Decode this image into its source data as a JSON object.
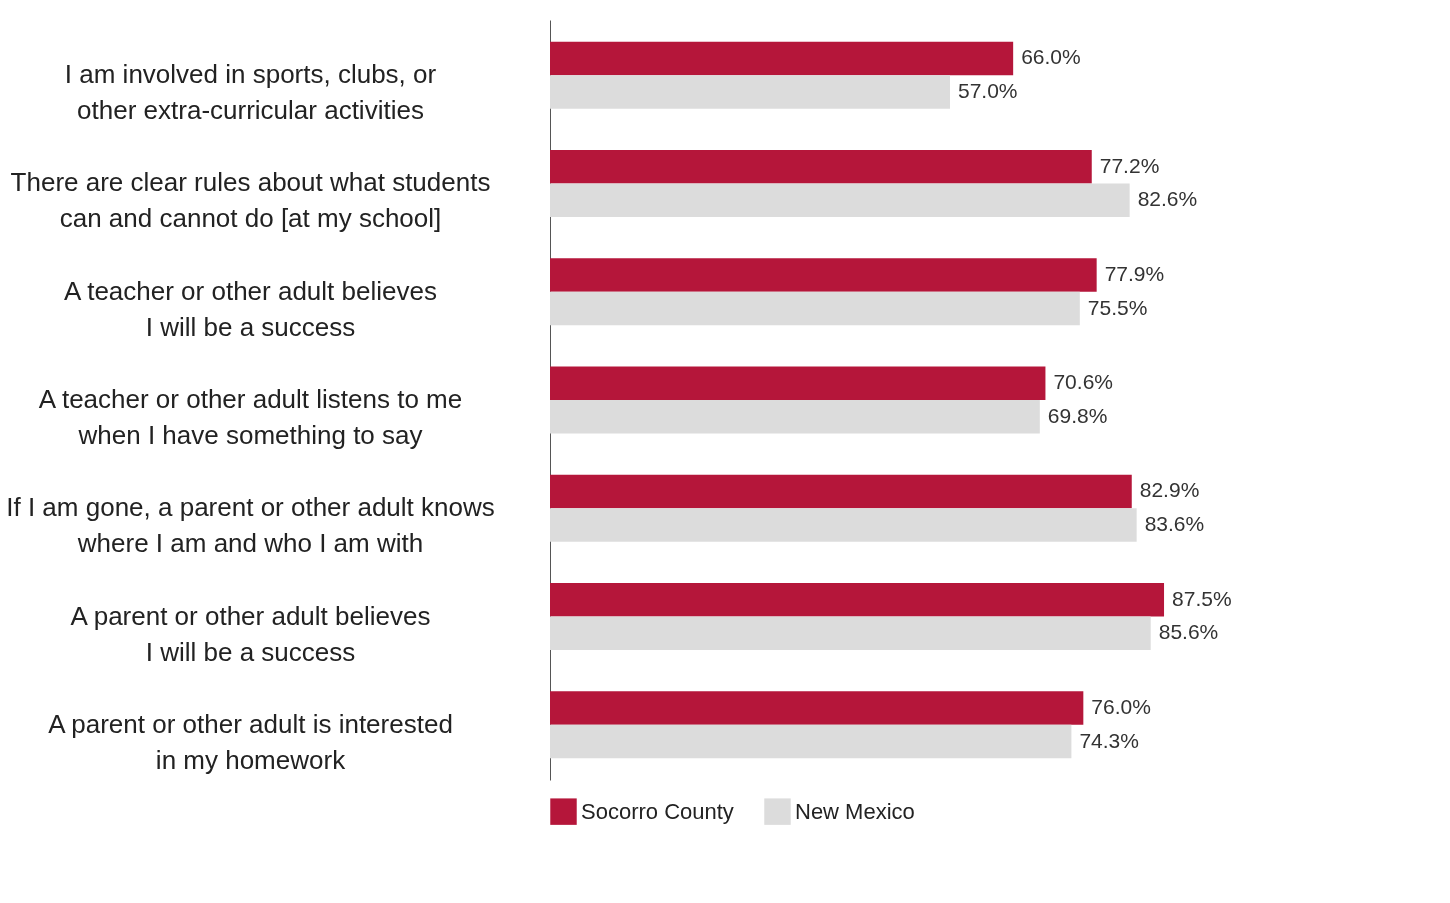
{
  "chart_data": {
    "type": "bar",
    "orientation": "horizontal",
    "categories": [
      "I am involved in sports, clubs, or\nother extra-curricular activities",
      "There are clear rules about what students\ncan and cannot do [at my school]",
      "A teacher or other adult believes\nI will be a success",
      "A teacher or other adult listens to me\nwhen I have something to say",
      "If I am gone, a parent or other adult knows\nwhere I am and who I am with",
      "A parent or other adult believes\nI will be a success",
      "A parent or other adult is interested\nin my homework"
    ],
    "series": [
      {
        "name": "Socorro County",
        "color": "#b5163a",
        "values": [
          66.0,
          77.2,
          77.9,
          70.6,
          82.9,
          87.5,
          76.0
        ],
        "value_labels": [
          "66.0%",
          "77.2%",
          "77.9%",
          "70.6%",
          "82.9%",
          "87.5%",
          "76.0%"
        ]
      },
      {
        "name": "New Mexico",
        "color": "#dcdcdc",
        "values": [
          57.0,
          82.6,
          75.5,
          69.8,
          83.6,
          85.6,
          74.3
        ],
        "value_labels": [
          "57.0%",
          "82.6%",
          "75.5%",
          "69.8%",
          "83.6%",
          "85.6%",
          "74.3%"
        ]
      }
    ],
    "legend": "bottom",
    "grid": false
  }
}
